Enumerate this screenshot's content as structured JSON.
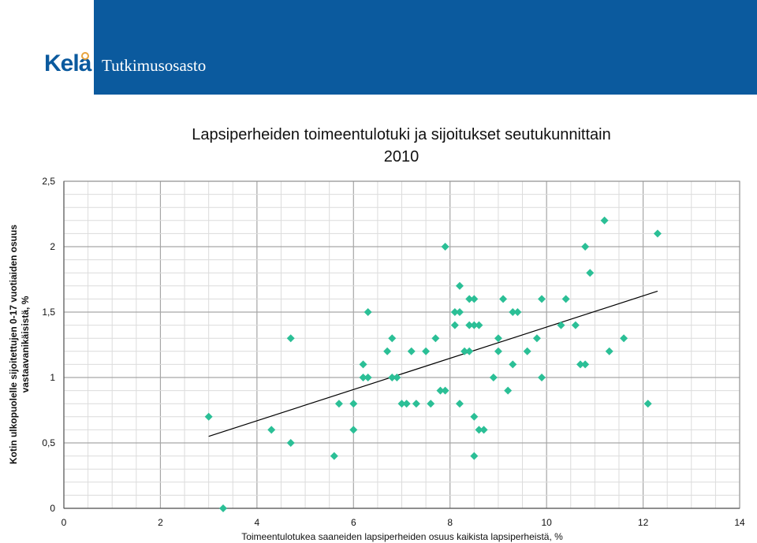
{
  "header": {
    "logo_text": "Kela",
    "department": "Tutkimusosasto"
  },
  "colors": {
    "header_bg": "#0b5a9e",
    "marker": "#2bbf96",
    "trendline": "#000000",
    "grid": "#bfbfbf"
  },
  "chart_data": {
    "type": "scatter",
    "title_line1": "Lapsiperheiden toimeentulotuki ja sijoitukset seutukunnittain",
    "title_line2": "2010",
    "xlabel": "Toimeentulotukea saaneiden lapsiperheiden osuus kaikista lapsiperheistä, %",
    "ylabel_line1": "Kotin ulkopuolelle sijoitettujen 0-17 vuotiaiden osuus",
    "ylabel_line2": "vastaavanikäisistä, %",
    "xlim": [
      0,
      14
    ],
    "ylim": [
      0,
      2.5
    ],
    "xticks": [
      0,
      2,
      4,
      6,
      8,
      10,
      12,
      14
    ],
    "xtick_labels": [
      "0",
      "2",
      "4",
      "6",
      "8",
      "10",
      "12",
      "14"
    ],
    "yticks": [
      0,
      0.5,
      1,
      1.5,
      2,
      2.5
    ],
    "ytick_labels": [
      "0",
      "0,5",
      "1",
      "1,5",
      "2",
      "2,5"
    ],
    "grid": true,
    "marker_shape": "diamond",
    "points": [
      {
        "x": 3.0,
        "y": 0.7
      },
      {
        "x": 3.3,
        "y": 0.0
      },
      {
        "x": 4.3,
        "y": 0.6
      },
      {
        "x": 4.7,
        "y": 0.5
      },
      {
        "x": 4.7,
        "y": 1.3
      },
      {
        "x": 5.6,
        "y": 0.4
      },
      {
        "x": 5.7,
        "y": 0.8
      },
      {
        "x": 6.0,
        "y": 0.6
      },
      {
        "x": 6.0,
        "y": 0.8
      },
      {
        "x": 6.2,
        "y": 1.0
      },
      {
        "x": 6.2,
        "y": 1.1
      },
      {
        "x": 6.3,
        "y": 1.0
      },
      {
        "x": 6.3,
        "y": 1.5
      },
      {
        "x": 6.7,
        "y": 1.2
      },
      {
        "x": 6.8,
        "y": 1.3
      },
      {
        "x": 6.8,
        "y": 1.0
      },
      {
        "x": 6.9,
        "y": 1.0
      },
      {
        "x": 7.0,
        "y": 0.8
      },
      {
        "x": 7.1,
        "y": 0.8
      },
      {
        "x": 7.2,
        "y": 1.2
      },
      {
        "x": 7.3,
        "y": 0.8
      },
      {
        "x": 7.5,
        "y": 1.2
      },
      {
        "x": 7.6,
        "y": 0.8
      },
      {
        "x": 7.7,
        "y": 1.3
      },
      {
        "x": 7.8,
        "y": 0.9
      },
      {
        "x": 7.9,
        "y": 0.9
      },
      {
        "x": 7.9,
        "y": 2.0
      },
      {
        "x": 8.1,
        "y": 1.4
      },
      {
        "x": 8.1,
        "y": 1.5
      },
      {
        "x": 8.2,
        "y": 1.5
      },
      {
        "x": 8.2,
        "y": 1.7
      },
      {
        "x": 8.2,
        "y": 0.8
      },
      {
        "x": 8.3,
        "y": 1.2
      },
      {
        "x": 8.4,
        "y": 1.2
      },
      {
        "x": 8.4,
        "y": 1.4
      },
      {
        "x": 8.4,
        "y": 1.6
      },
      {
        "x": 8.5,
        "y": 1.6
      },
      {
        "x": 8.5,
        "y": 1.4
      },
      {
        "x": 8.5,
        "y": 0.7
      },
      {
        "x": 8.5,
        "y": 0.4
      },
      {
        "x": 8.6,
        "y": 1.4
      },
      {
        "x": 8.6,
        "y": 0.6
      },
      {
        "x": 8.7,
        "y": 0.6
      },
      {
        "x": 8.9,
        "y": 1.0
      },
      {
        "x": 9.0,
        "y": 1.2
      },
      {
        "x": 9.0,
        "y": 1.3
      },
      {
        "x": 9.1,
        "y": 1.6
      },
      {
        "x": 9.2,
        "y": 0.9
      },
      {
        "x": 9.3,
        "y": 1.5
      },
      {
        "x": 9.3,
        "y": 1.1
      },
      {
        "x": 9.4,
        "y": 1.5
      },
      {
        "x": 9.6,
        "y": 1.2
      },
      {
        "x": 9.8,
        "y": 1.3
      },
      {
        "x": 9.9,
        "y": 1.6
      },
      {
        "x": 9.9,
        "y": 1.0
      },
      {
        "x": 10.3,
        "y": 1.4
      },
      {
        "x": 10.4,
        "y": 1.6
      },
      {
        "x": 10.6,
        "y": 1.4
      },
      {
        "x": 10.7,
        "y": 1.1
      },
      {
        "x": 10.8,
        "y": 1.1
      },
      {
        "x": 10.8,
        "y": 2.0
      },
      {
        "x": 10.9,
        "y": 1.8
      },
      {
        "x": 11.2,
        "y": 2.2
      },
      {
        "x": 11.3,
        "y": 1.2
      },
      {
        "x": 11.6,
        "y": 1.3
      },
      {
        "x": 12.1,
        "y": 0.8
      },
      {
        "x": 12.3,
        "y": 2.1
      }
    ],
    "trendline": {
      "type": "linear",
      "x_start": 3.0,
      "y_start": 0.55,
      "x_end": 12.3,
      "y_end": 1.66
    }
  }
}
